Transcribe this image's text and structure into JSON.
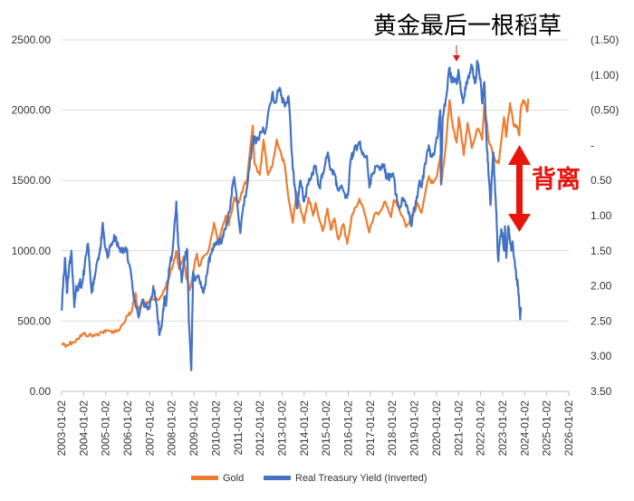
{
  "chart_data": {
    "type": "line",
    "title": "黄金最后一根稻草",
    "annotation": "背离",
    "colors": {
      "gold": "#ed7d31",
      "yield": "#4472c4",
      "annotation": "#e8150d",
      "grid": "#d9d9d9"
    },
    "x_axis": {
      "type": "date",
      "range": [
        "2003-01-02",
        "2026-01-02"
      ],
      "tick_labels": [
        "2003-01-02",
        "2004-01-02",
        "2005-01-02",
        "2006-01-02",
        "2007-01-02",
        "2008-01-02",
        "2009-01-02",
        "2010-01-02",
        "2011-01-02",
        "2012-01-02",
        "2013-01-02",
        "2014-01-02",
        "2015-01-02",
        "2016-01-02",
        "2017-01-02",
        "2018-01-02",
        "2019-01-02",
        "2020-01-02",
        "2021-01-02",
        "2022-01-02",
        "2023-01-02",
        "2024-01-02",
        "2025-01-02",
        "2026-01-02"
      ]
    },
    "y_left": {
      "range": [
        0,
        2500
      ],
      "tick_labels": [
        "0.00",
        "500.00",
        "1000.00",
        "1500.00",
        "2000.00",
        "2500.00"
      ]
    },
    "y_right": {
      "inverted": true,
      "range": [
        -1.5,
        3.5
      ],
      "tick_labels": [
        "(1.50)",
        "(1.00)",
        "(0.50)",
        "-",
        "0.50",
        "1.00",
        "1.50",
        "2.00",
        "2.50",
        "3.00",
        "3.50"
      ]
    },
    "legend_position": "bottom",
    "grid": true,
    "series": [
      {
        "name": "Gold",
        "axis": "left",
        "points": [
          [
            "2003-01-02",
            340
          ],
          [
            "2003-04-01",
            330
          ],
          [
            "2003-07-01",
            350
          ],
          [
            "2003-10-01",
            375
          ],
          [
            "2004-01-02",
            410
          ],
          [
            "2004-04-01",
            400
          ],
          [
            "2004-07-01",
            395
          ],
          [
            "2004-10-01",
            420
          ],
          [
            "2005-01-02",
            425
          ],
          [
            "2005-04-01",
            430
          ],
          [
            "2005-07-01",
            425
          ],
          [
            "2005-10-01",
            470
          ],
          [
            "2006-01-02",
            540
          ],
          [
            "2006-03-01",
            560
          ],
          [
            "2006-05-12",
            700
          ],
          [
            "2006-06-14",
            570
          ],
          [
            "2006-09-01",
            620
          ],
          [
            "2006-12-01",
            630
          ],
          [
            "2007-02-01",
            660
          ],
          [
            "2007-06-01",
            650
          ],
          [
            "2007-09-01",
            720
          ],
          [
            "2007-11-01",
            800
          ],
          [
            "2008-01-15",
            890
          ],
          [
            "2008-03-17",
            1000
          ],
          [
            "2008-05-01",
            870
          ],
          [
            "2008-07-15",
            960
          ],
          [
            "2008-09-01",
            800
          ],
          [
            "2008-10-24",
            720
          ],
          [
            "2008-12-01",
            800
          ],
          [
            "2009-02-20",
            980
          ],
          [
            "2009-04-01",
            890
          ],
          [
            "2009-06-01",
            950
          ],
          [
            "2009-09-01",
            1000
          ],
          [
            "2009-12-01",
            1200
          ],
          [
            "2010-02-05",
            1060
          ],
          [
            "2010-06-15",
            1250
          ],
          [
            "2010-08-01",
            1180
          ],
          [
            "2010-11-01",
            1380
          ],
          [
            "2011-01-15",
            1340
          ],
          [
            "2011-04-01",
            1450
          ],
          [
            "2011-06-01",
            1500
          ],
          [
            "2011-09-05",
            1890
          ],
          [
            "2011-10-01",
            1620
          ],
          [
            "2011-12-29",
            1540
          ],
          [
            "2012-02-28",
            1790
          ],
          [
            "2012-05-15",
            1540
          ],
          [
            "2012-08-01",
            1620
          ],
          [
            "2012-10-05",
            1790
          ],
          [
            "2012-12-31",
            1660
          ],
          [
            "2013-02-15",
            1610
          ],
          [
            "2013-04-15",
            1380
          ],
          [
            "2013-06-28",
            1200
          ],
          [
            "2013-08-28",
            1420
          ],
          [
            "2013-12-31",
            1200
          ],
          [
            "2014-03-15",
            1380
          ],
          [
            "2014-06-01",
            1250
          ],
          [
            "2014-07-10",
            1340
          ],
          [
            "2014-11-07",
            1140
          ],
          [
            "2015-01-22",
            1300
          ],
          [
            "2015-03-17",
            1150
          ],
          [
            "2015-05-18",
            1230
          ],
          [
            "2015-07-24",
            1080
          ],
          [
            "2015-10-15",
            1190
          ],
          [
            "2015-12-17",
            1050
          ],
          [
            "2016-03-01",
            1250
          ],
          [
            "2016-07-06",
            1370
          ],
          [
            "2016-10-01",
            1260
          ],
          [
            "2016-12-15",
            1130
          ],
          [
            "2017-03-01",
            1250
          ],
          [
            "2017-06-01",
            1270
          ],
          [
            "2017-09-08",
            1350
          ],
          [
            "2017-12-12",
            1240
          ],
          [
            "2018-01-25",
            1360
          ],
          [
            "2018-04-01",
            1330
          ],
          [
            "2018-08-16",
            1170
          ],
          [
            "2018-12-31",
            1280
          ],
          [
            "2019-02-20",
            1340
          ],
          [
            "2019-05-01",
            1270
          ],
          [
            "2019-08-30",
            1530
          ],
          [
            "2019-10-01",
            1480
          ],
          [
            "2019-12-31",
            1520
          ],
          [
            "2020-03-06",
            1680
          ],
          [
            "2020-03-19",
            1470
          ],
          [
            "2020-06-01",
            1730
          ],
          [
            "2020-08-06",
            2070
          ],
          [
            "2020-09-30",
            1880
          ],
          [
            "2020-11-30",
            1770
          ],
          [
            "2021-01-06",
            1950
          ],
          [
            "2021-03-30",
            1680
          ],
          [
            "2021-06-01",
            1910
          ],
          [
            "2021-08-09",
            1730
          ],
          [
            "2021-11-16",
            1870
          ],
          [
            "2022-01-28",
            1790
          ],
          [
            "2022-03-08",
            2050
          ],
          [
            "2022-05-16",
            1790
          ],
          [
            "2022-07-21",
            1690
          ],
          [
            "2022-09-28",
            1630
          ],
          [
            "2022-11-03",
            1630
          ],
          [
            "2023-01-26",
            1950
          ],
          [
            "2023-02-28",
            1810
          ],
          [
            "2023-05-04",
            2050
          ],
          [
            "2023-06-29",
            1900
          ],
          [
            "2023-08-21",
            1890
          ],
          [
            "2023-10-05",
            1820
          ],
          [
            "2023-10-27",
            2000
          ],
          [
            "2023-12-04",
            2070
          ],
          [
            "2024-01-02",
            2060
          ],
          [
            "2024-02-14",
            1990
          ],
          [
            "2024-03-01",
            2080
          ]
        ]
      },
      {
        "name": "Real Treasury Yield (Inverted)",
        "axis": "right",
        "points": [
          [
            "2003-01-02",
            2.35
          ],
          [
            "2003-02-01",
            1.9
          ],
          [
            "2003-03-01",
            1.6
          ],
          [
            "2003-04-01",
            2.1
          ],
          [
            "2003-05-01",
            1.8
          ],
          [
            "2003-06-13",
            1.5
          ],
          [
            "2003-08-01",
            2.3
          ],
          [
            "2003-09-01",
            2.0
          ],
          [
            "2003-10-01",
            2.05
          ],
          [
            "2003-11-01",
            1.95
          ],
          [
            "2003-12-01",
            2.0
          ],
          [
            "2004-01-15",
            1.75
          ],
          [
            "2004-03-15",
            1.4
          ],
          [
            "2004-05-14",
            2.1
          ],
          [
            "2004-07-01",
            1.9
          ],
          [
            "2004-09-01",
            1.6
          ],
          [
            "2004-10-15",
            1.4
          ],
          [
            "2004-11-15",
            1.1
          ],
          [
            "2004-12-15",
            1.4
          ],
          [
            "2005-02-01",
            1.6
          ],
          [
            "2005-04-01",
            1.4
          ],
          [
            "2005-06-01",
            1.3
          ],
          [
            "2005-08-01",
            1.45
          ],
          [
            "2005-10-01",
            1.5
          ],
          [
            "2005-12-01",
            1.45
          ],
          [
            "2006-02-01",
            1.7
          ],
          [
            "2006-04-01",
            2.1
          ],
          [
            "2006-06-28",
            2.45
          ],
          [
            "2006-09-01",
            2.2
          ],
          [
            "2006-11-01",
            2.3
          ],
          [
            "2007-01-02",
            2.3
          ],
          [
            "2007-03-01",
            2.0
          ],
          [
            "2007-05-01",
            2.3
          ],
          [
            "2007-06-13",
            2.7
          ],
          [
            "2007-08-01",
            2.45
          ],
          [
            "2007-09-01",
            2.15
          ],
          [
            "2007-10-01",
            2.25
          ],
          [
            "2007-11-15",
            1.75
          ],
          [
            "2008-01-15",
            1.5
          ],
          [
            "2008-03-17",
            0.8
          ],
          [
            "2008-04-15",
            1.4
          ],
          [
            "2008-06-13",
            1.95
          ],
          [
            "2008-08-01",
            1.6
          ],
          [
            "2008-09-15",
            1.5
          ],
          [
            "2008-10-10",
            2.5
          ],
          [
            "2008-11-20",
            3.2
          ],
          [
            "2008-12-19",
            1.8
          ],
          [
            "2009-02-01",
            1.9
          ],
          [
            "2009-04-01",
            1.9
          ],
          [
            "2009-06-10",
            2.1
          ],
          [
            "2009-08-01",
            1.85
          ],
          [
            "2009-10-01",
            1.55
          ],
          [
            "2009-12-01",
            1.4
          ],
          [
            "2010-02-01",
            1.35
          ],
          [
            "2010-04-01",
            1.4
          ],
          [
            "2010-06-01",
            1.2
          ],
          [
            "2010-08-25",
            0.9
          ],
          [
            "2010-10-01",
            0.6
          ],
          [
            "2010-11-01",
            0.45
          ],
          [
            "2011-02-09",
            1.25
          ],
          [
            "2011-04-01",
            0.85
          ],
          [
            "2011-06-01",
            0.6
          ],
          [
            "2011-08-18",
            0.05
          ],
          [
            "2011-09-22",
            -0.1
          ],
          [
            "2011-11-01",
            -0.05
          ],
          [
            "2012-02-01",
            -0.2
          ],
          [
            "2012-04-01",
            -0.2
          ],
          [
            "2012-07-25",
            -0.75
          ],
          [
            "2012-09-01",
            -0.6
          ],
          [
            "2012-11-15",
            -0.8
          ],
          [
            "2012-12-31",
            -0.65
          ],
          [
            "2013-02-15",
            -0.55
          ],
          [
            "2013-04-15",
            -0.7
          ],
          [
            "2013-05-01",
            -0.55
          ],
          [
            "2013-06-28",
            0.35
          ],
          [
            "2013-08-01",
            0.6
          ],
          [
            "2013-09-06",
            0.9
          ],
          [
            "2013-11-01",
            0.5
          ],
          [
            "2014-01-02",
            0.8
          ],
          [
            "2014-03-01",
            0.55
          ],
          [
            "2014-05-01",
            0.45
          ],
          [
            "2014-07-01",
            0.3
          ],
          [
            "2014-09-15",
            0.6
          ],
          [
            "2014-11-01",
            0.4
          ],
          [
            "2015-01-30",
            0.1
          ],
          [
            "2015-03-01",
            0.3
          ],
          [
            "2015-05-15",
            0.4
          ],
          [
            "2015-07-01",
            0.6
          ],
          [
            "2015-09-01",
            0.6
          ],
          [
            "2015-11-15",
            0.75
          ],
          [
            "2015-12-31",
            0.7
          ],
          [
            "2016-02-11",
            0.2
          ],
          [
            "2016-04-01",
            0.1
          ],
          [
            "2016-07-08",
            -0.05
          ],
          [
            "2016-09-01",
            0.1
          ],
          [
            "2016-11-01",
            0.15
          ],
          [
            "2016-12-16",
            0.6
          ],
          [
            "2017-02-01",
            0.4
          ],
          [
            "2017-04-01",
            0.3
          ],
          [
            "2017-06-26",
            0.3
          ],
          [
            "2017-08-15",
            0.3
          ],
          [
            "2017-10-01",
            0.45
          ],
          [
            "2017-12-01",
            0.45
          ],
          [
            "2018-01-15",
            0.4
          ],
          [
            "2018-03-01",
            0.7
          ],
          [
            "2018-05-01",
            0.9
          ],
          [
            "2018-07-01",
            0.75
          ],
          [
            "2018-09-01",
            0.85
          ],
          [
            "2018-11-08",
            1.15
          ],
          [
            "2018-12-31",
            0.9
          ],
          [
            "2019-02-01",
            0.8
          ],
          [
            "2019-03-28",
            0.5
          ],
          [
            "2019-05-01",
            0.6
          ],
          [
            "2019-07-01",
            0.25
          ],
          [
            "2019-08-28",
            0.0
          ],
          [
            "2019-10-01",
            0.15
          ],
          [
            "2019-12-01",
            0.1
          ],
          [
            "2020-01-31",
            -0.2
          ],
          [
            "2020-03-05",
            -0.5
          ],
          [
            "2020-03-19",
            0.55
          ],
          [
            "2020-04-15",
            -0.4
          ],
          [
            "2020-06-15",
            -0.7
          ],
          [
            "2020-08-04",
            -1.1
          ],
          [
            "2020-09-01",
            -0.95
          ],
          [
            "2020-10-15",
            -0.9
          ],
          [
            "2020-12-01",
            -0.9
          ],
          [
            "2021-01-04",
            -1.05
          ],
          [
            "2021-02-25",
            -0.7
          ],
          [
            "2021-03-18",
            -0.6
          ],
          [
            "2021-05-10",
            -0.9
          ],
          [
            "2021-07-01",
            -1.0
          ],
          [
            "2021-08-02",
            -1.15
          ],
          [
            "2021-09-15",
            -0.95
          ],
          [
            "2021-10-15",
            -0.9
          ],
          [
            "2021-11-08",
            -1.2
          ],
          [
            "2021-12-31",
            -0.95
          ],
          [
            "2022-01-27",
            -0.6
          ],
          [
            "2022-03-07",
            -0.9
          ],
          [
            "2022-04-06",
            -0.15
          ],
          [
            "2022-05-06",
            0.25
          ],
          [
            "2022-06-14",
            0.85
          ],
          [
            "2022-08-01",
            0.1
          ],
          [
            "2022-09-15",
            0.9
          ],
          [
            "2022-10-21",
            1.65
          ],
          [
            "2022-11-15",
            1.4
          ],
          [
            "2022-12-15",
            1.2
          ],
          [
            "2023-01-30",
            1.5
          ],
          [
            "2023-02-10",
            1.15
          ],
          [
            "2023-03-02",
            1.6
          ],
          [
            "2023-04-06",
            1.15
          ],
          [
            "2023-05-26",
            1.5
          ],
          [
            "2023-06-20",
            1.4
          ],
          [
            "2023-08-18",
            1.9
          ],
          [
            "2023-09-15",
            2.0
          ],
          [
            "2023-10-19",
            2.45
          ],
          [
            "2023-11-01",
            2.3
          ]
        ]
      }
    ]
  }
}
